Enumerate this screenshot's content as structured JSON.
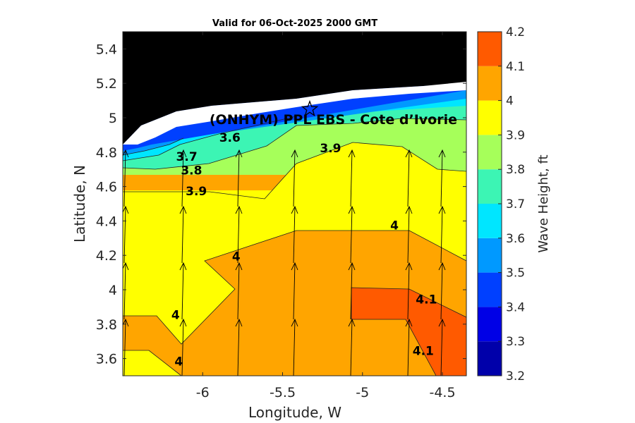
{
  "chart_data": {
    "type": "contour",
    "title": "Valid for 06-Oct-2025 2000 GMT",
    "xlabel": "Longitude, W",
    "ylabel": "Latitude, N",
    "xlim": [
      -6.5,
      -4.35
    ],
    "ylim": [
      3.5,
      5.5
    ],
    "xticks": [
      -6,
      -5.5,
      -5,
      -4.5
    ],
    "xtick_labels": [
      "-6",
      "-5.5",
      "-5",
      "-4.5"
    ],
    "yticks": [
      3.6,
      3.8,
      4.0,
      4.2,
      4.4,
      4.6,
      4.8,
      5.0,
      5.2,
      5.4
    ],
    "ytick_labels": [
      "3.6",
      "3.8",
      "4",
      "4.2",
      "4.4",
      "4.6",
      "4.8",
      "5",
      "5.2",
      "5.4"
    ],
    "site": {
      "label": "(ONHYM) PPL EBS  - Cote d’Ivorie",
      "lon": -5.33,
      "lat": 5.05
    },
    "colorbar": {
      "label": "Wave Height, ft",
      "levels": [
        3.2,
        3.3,
        3.4,
        3.5,
        3.6,
        3.7,
        3.8,
        3.9,
        4.0,
        4.1,
        4.2
      ],
      "tick_labels": [
        "3.2",
        "3.3",
        "3.4",
        "3.5",
        "3.6",
        "3.7",
        "3.8",
        "3.9",
        "4",
        "4.1",
        "4.2"
      ],
      "colors": [
        "#0000aa",
        "#0000e6",
        "#0040ff",
        "#0099ff",
        "#00e6ff",
        "#3cf5b4",
        "#a6ff5a",
        "#ffff00",
        "#ffa500",
        "#ff5a00"
      ]
    },
    "contour_labels": [
      {
        "text": "3.6",
        "lon": -5.83,
        "lat": 4.86
      },
      {
        "text": "3.7",
        "lon": -6.1,
        "lat": 4.75
      },
      {
        "text": "3.8",
        "lon": -6.07,
        "lat": 4.67
      },
      {
        "text": "3.9",
        "lon": -6.04,
        "lat": 4.55
      },
      {
        "text": "3.9",
        "lon": -5.2,
        "lat": 4.8
      },
      {
        "text": "4",
        "lon": -4.8,
        "lat": 4.35
      },
      {
        "text": "4",
        "lon": -5.79,
        "lat": 4.17
      },
      {
        "text": "4",
        "lon": -6.17,
        "lat": 3.83
      },
      {
        "text": "4",
        "lon": -6.15,
        "lat": 3.56
      },
      {
        "text": "4.1",
        "lon": -4.6,
        "lat": 3.92
      },
      {
        "text": "4.1",
        "lon": -4.62,
        "lat": 3.62
      }
    ],
    "wave_direction": "toward north (arrows)"
  }
}
